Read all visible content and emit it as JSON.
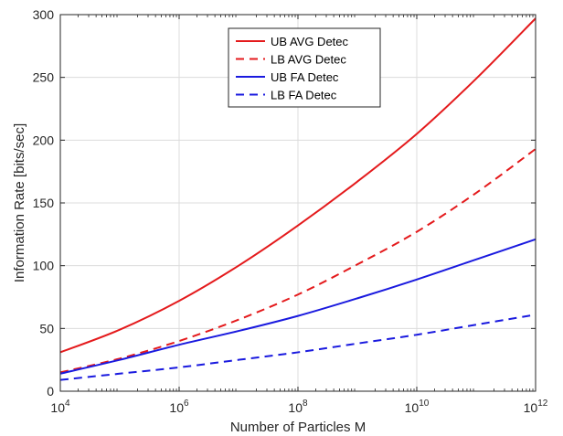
{
  "chart_data": {
    "type": "line",
    "title": "",
    "xlabel": "Number of Particles M",
    "ylabel": "Information Rate [bits/sec]",
    "x_scale": "log10",
    "xlim": [
      10000,
      1000000000000
    ],
    "ylim": [
      0,
      300
    ],
    "x_ticks": [
      {
        "value": 10000,
        "base": "10",
        "exp": "4"
      },
      {
        "value": 1000000,
        "base": "10",
        "exp": "6"
      },
      {
        "value": 100000000,
        "base": "10",
        "exp": "8"
      },
      {
        "value": 10000000000,
        "base": "10",
        "exp": "10"
      },
      {
        "value": 1000000000000,
        "base": "10",
        "exp": "12"
      }
    ],
    "y_ticks": [
      0,
      50,
      100,
      150,
      200,
      250,
      300
    ],
    "grid": true,
    "legend_position": "top-center",
    "x": [
      10000,
      100000,
      1000000,
      10000000,
      100000000,
      1000000000,
      10000000000,
      100000000000,
      1000000000000
    ],
    "series": [
      {
        "name": "UB AVG Detec",
        "color": "#e41a1c",
        "dash": "solid",
        "values": [
          31,
          49,
          72,
          100,
          132,
          167,
          205,
          249,
          297
        ]
      },
      {
        "name": "LB AVG Detec",
        "color": "#e41a1c",
        "dash": "dashed",
        "values": [
          15,
          26,
          40,
          57,
          77,
          101,
          127,
          158,
          193
        ]
      },
      {
        "name": "UB FA Detec",
        "color": "#1a1adf",
        "dash": "solid",
        "values": [
          14,
          25,
          37,
          48,
          60,
          74,
          89,
          105,
          121
        ]
      },
      {
        "name": "LB FA Detec",
        "color": "#1a1adf",
        "dash": "dashed",
        "values": [
          9,
          14,
          19,
          25,
          31,
          38,
          45,
          53,
          61
        ]
      }
    ]
  }
}
